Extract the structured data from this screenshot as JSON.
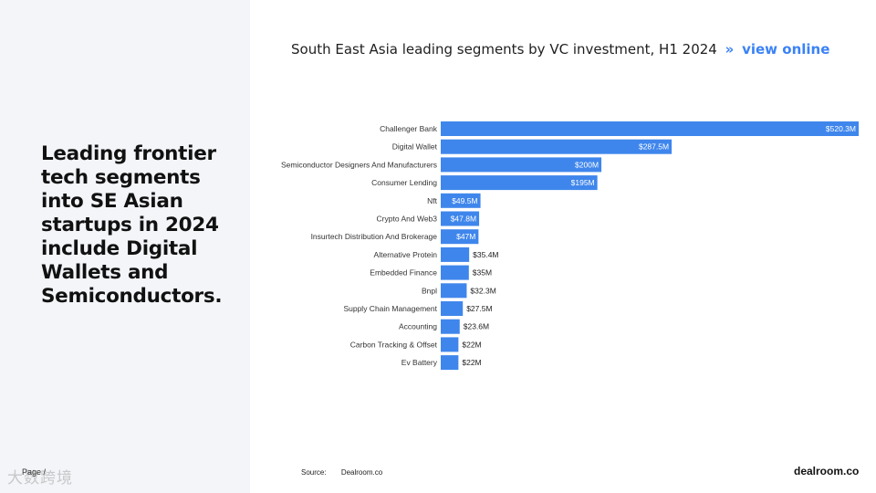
{
  "headline": "Leading frontier tech segments into SE Asian startups in 2024 include Digital Wallets and Semiconductors.",
  "title": "South East Asia leading segments by VC investment, H1 2024",
  "title_sep": "»",
  "view_online": "view online",
  "page_label": "Page / ",
  "watermark_text": "大数跨境",
  "source_label": "Source:",
  "source_value": "Dealroom.co",
  "logo_text": "dealroom.co",
  "colors": {
    "bar": "#3f86ec",
    "accent": "#3b82f6",
    "panel": "#f3f5f9"
  },
  "chart_data": {
    "type": "bar",
    "orientation": "horizontal",
    "title": "South East Asia leading segments by VC investment, H1 2024",
    "categories": [
      "Challenger Bank",
      "Digital Wallet",
      "Semiconductor Designers And Manufacturers",
      "Consumer Lending",
      "Nft",
      "Crypto And Web3",
      "Insurtech Distribution And Brokerage",
      "Alternative Protein",
      "Embedded Finance",
      "Bnpl",
      "Supply Chain Management",
      "Accounting",
      "Carbon Tracking & Offset",
      "Ev Battery"
    ],
    "values": [
      520.3,
      287.5,
      200,
      195,
      49.5,
      47.8,
      47,
      35.4,
      35,
      32.3,
      27.5,
      23.6,
      22,
      22
    ],
    "labels": [
      "$520.3M",
      "$287.5M",
      "$200M",
      "$195M",
      "$49.5M",
      "$47.8M",
      "$47M",
      "$35.4M",
      "$35M",
      "$32.3M",
      "$27.5M",
      "$23.6M",
      "$22M",
      "$22M"
    ],
    "unit": "$M",
    "xlim": [
      0,
      520.3
    ],
    "grid": false,
    "legend": "none"
  }
}
